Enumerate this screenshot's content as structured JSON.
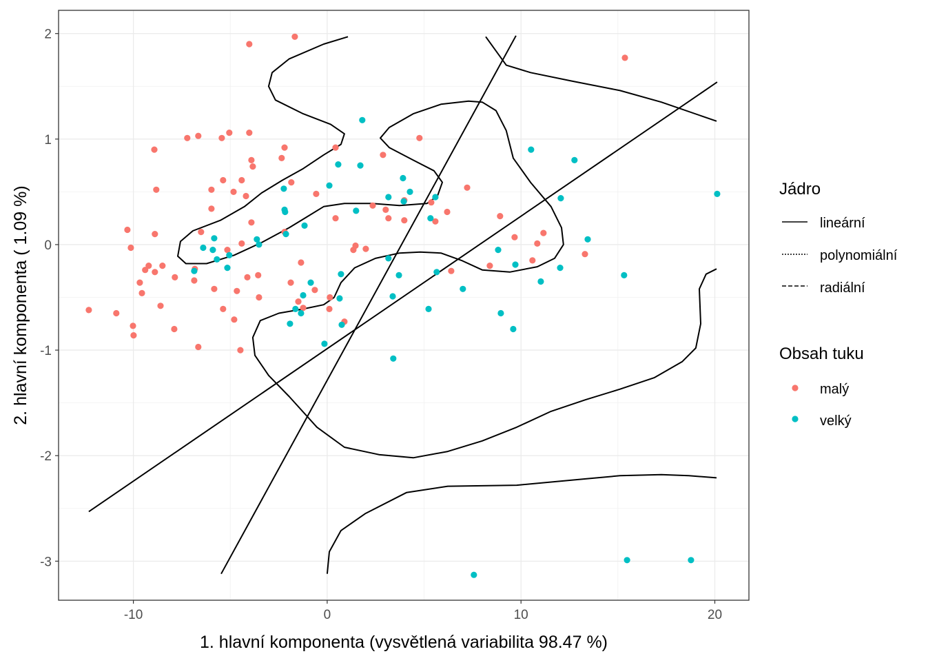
{
  "chart_data": {
    "type": "scatter",
    "xlabel": "1. hlavní komponenta (vysvětlená variabilita 98.47 %)",
    "ylabel": "2. hlavní komponenta ( 1.09 %)",
    "xlim": [
      -13.86,
      21.76
    ],
    "ylim": [
      -3.37,
      2.22
    ],
    "xticks": [
      -10,
      0,
      10,
      20
    ],
    "xtick_labels": [
      "-10",
      "0",
      "10",
      "20"
    ],
    "yticks": [
      -3,
      -2,
      -1,
      0,
      1,
      2
    ],
    "ytick_labels": [
      "-3",
      "-2",
      "-1",
      "0",
      "1",
      "2"
    ],
    "grid": true,
    "legend_placement": "right",
    "legend_lines": {
      "title": "Jádro",
      "entries": [
        {
          "label": "lineární",
          "dash": "solid"
        },
        {
          "label": "polynomiální",
          "dash": "dotted"
        },
        {
          "label": "radiální",
          "dash": "dashed"
        }
      ]
    },
    "legend_points": {
      "title": "Obsah tuku",
      "entries": [
        {
          "label": "malý",
          "color": "#F8766D"
        },
        {
          "label": "velký",
          "color": "#00BFC4"
        }
      ]
    },
    "series": [
      {
        "name": "malý",
        "color": "#F8766D",
        "points": [
          [
            -12.3,
            -0.62
          ],
          [
            -10.88,
            -0.65
          ],
          [
            -10.31,
            0.14
          ],
          [
            -10.13,
            -0.03
          ],
          [
            -10.02,
            -0.77
          ],
          [
            -9.99,
            -0.86
          ],
          [
            -9.67,
            -0.36
          ],
          [
            -9.56,
            -0.46
          ],
          [
            -9.39,
            -0.24
          ],
          [
            -9.21,
            -0.2
          ],
          [
            -8.89,
            -0.26
          ],
          [
            -8.89,
            0.1
          ],
          [
            -8.92,
            0.9
          ],
          [
            -8.82,
            0.52
          ],
          [
            -8.6,
            -0.58
          ],
          [
            -8.5,
            -0.2
          ],
          [
            -7.89,
            -0.8
          ],
          [
            -7.86,
            -0.31
          ],
          [
            -7.22,
            1.01
          ],
          [
            -6.86,
            -0.34
          ],
          [
            -6.83,
            -0.23
          ],
          [
            -6.65,
            1.03
          ],
          [
            -6.65,
            -0.97
          ],
          [
            -6.51,
            0.12
          ],
          [
            -5.97,
            0.52
          ],
          [
            -5.97,
            0.34
          ],
          [
            -5.83,
            -0.42
          ],
          [
            -5.44,
            1.01
          ],
          [
            -5.37,
            0.61
          ],
          [
            -5.37,
            -0.61
          ],
          [
            -5.15,
            -0.05
          ],
          [
            -5.05,
            1.06
          ],
          [
            -4.83,
            0.5
          ],
          [
            -4.8,
            -0.71
          ],
          [
            -4.66,
            -0.44
          ],
          [
            -4.48,
            -1.0
          ],
          [
            -4.41,
            0.61
          ],
          [
            -4.41,
            0.01
          ],
          [
            -4.19,
            0.46
          ],
          [
            -4.12,
            -0.31
          ],
          [
            -4.02,
            1.9
          ],
          [
            -4.02,
            1.06
          ],
          [
            -3.91,
            0.8
          ],
          [
            -3.84,
            0.74
          ],
          [
            -3.91,
            0.21
          ],
          [
            -3.56,
            -0.29
          ],
          [
            -3.52,
            -0.5
          ],
          [
            -2.35,
            0.82
          ],
          [
            -2.2,
            0.92
          ],
          [
            -2.2,
            0.12
          ],
          [
            -1.85,
            0.59
          ],
          [
            -1.88,
            -0.36
          ],
          [
            -1.67,
            1.97
          ],
          [
            -1.49,
            -0.54
          ],
          [
            -1.35,
            -0.17
          ],
          [
            -1.24,
            -0.6
          ],
          [
            -0.64,
            -0.43
          ],
          [
            -0.57,
            0.48
          ],
          [
            0.11,
            -0.61
          ],
          [
            0.14,
            -0.5
          ],
          [
            0.43,
            0.92
          ],
          [
            0.43,
            0.25
          ],
          [
            0.89,
            -0.73
          ],
          [
            1.35,
            -0.05
          ],
          [
            1.46,
            -0.01
          ],
          [
            1.99,
            -0.04
          ],
          [
            2.35,
            0.37
          ],
          [
            2.88,
            0.85
          ],
          [
            3.02,
            0.33
          ],
          [
            3.16,
            0.25
          ],
          [
            3.98,
            0.42
          ],
          [
            3.98,
            0.23
          ],
          [
            4.76,
            1.01
          ],
          [
            5.37,
            0.4
          ],
          [
            5.58,
            0.22
          ],
          [
            6.19,
            0.31
          ],
          [
            6.4,
            -0.25
          ],
          [
            7.22,
            0.54
          ],
          [
            8.39,
            -0.2
          ],
          [
            8.92,
            0.27
          ],
          [
            9.67,
            0.07
          ],
          [
            10.59,
            -0.15
          ],
          [
            10.84,
            0.01
          ],
          [
            11.16,
            0.11
          ],
          [
            13.3,
            -0.09
          ],
          [
            15.36,
            1.77
          ]
        ]
      },
      {
        "name": "velký",
        "color": "#00BFC4",
        "points": [
          [
            -6.86,
            -0.25
          ],
          [
            -6.4,
            -0.03
          ],
          [
            -5.9,
            -0.05
          ],
          [
            -5.83,
            0.06
          ],
          [
            -5.69,
            -0.14
          ],
          [
            -5.15,
            -0.22
          ],
          [
            -5.05,
            -0.1
          ],
          [
            -3.63,
            0.05
          ],
          [
            -3.52,
            0.0
          ],
          [
            -2.24,
            0.53
          ],
          [
            -2.2,
            0.33
          ],
          [
            -2.17,
            0.31
          ],
          [
            -2.13,
            0.1
          ],
          [
            -1.92,
            -0.75
          ],
          [
            -1.64,
            -0.61
          ],
          [
            -1.35,
            -0.65
          ],
          [
            -1.24,
            -0.48
          ],
          [
            -1.17,
            0.18
          ],
          [
            -0.85,
            -0.36
          ],
          [
            -0.14,
            -0.94
          ],
          [
            0.11,
            0.56
          ],
          [
            0.57,
            0.76
          ],
          [
            0.64,
            -0.51
          ],
          [
            0.71,
            -0.28
          ],
          [
            0.75,
            -0.76
          ],
          [
            1.49,
            0.32
          ],
          [
            1.71,
            0.75
          ],
          [
            1.81,
            1.18
          ],
          [
            3.16,
            0.45
          ],
          [
            3.16,
            -0.13
          ],
          [
            3.38,
            -0.49
          ],
          [
            3.41,
            -1.08
          ],
          [
            3.7,
            -0.29
          ],
          [
            3.91,
            0.63
          ],
          [
            3.95,
            0.41
          ],
          [
            4.27,
            0.5
          ],
          [
            5.23,
            -0.61
          ],
          [
            5.33,
            0.25
          ],
          [
            5.58,
            0.45
          ],
          [
            5.65,
            -0.26
          ],
          [
            7.0,
            -0.42
          ],
          [
            7.57,
            -3.13
          ],
          [
            8.82,
            -0.05
          ],
          [
            8.96,
            -0.65
          ],
          [
            9.6,
            -0.8
          ],
          [
            9.71,
            -0.19
          ],
          [
            10.52,
            0.9
          ],
          [
            11.02,
            -0.35
          ],
          [
            12.02,
            -0.22
          ],
          [
            12.05,
            0.44
          ],
          [
            12.76,
            0.8
          ],
          [
            13.44,
            0.05
          ],
          [
            15.32,
            -0.29
          ],
          [
            15.47,
            -2.99
          ],
          [
            18.77,
            -2.99
          ],
          [
            20.12,
            0.48
          ]
        ]
      }
    ],
    "boundaries": [
      {
        "kernel": "lineární",
        "dash": "solid",
        "points": [
          [
            -5.47,
            -3.12
          ],
          [
            9.74,
            1.98
          ]
        ]
      },
      {
        "kernel": "polynomiální",
        "dash": "dotted",
        "points": [
          [
            -12.3,
            -2.53
          ],
          [
            20.12,
            1.54
          ]
        ]
      },
      {
        "kernel": "radiální",
        "dash": "dashed",
        "points": [
          [
            1.07,
            1.97
          ],
          [
            -0.18,
            1.9
          ],
          [
            -1.96,
            1.76
          ],
          [
            -2.84,
            1.63
          ],
          [
            -3.02,
            1.5
          ],
          [
            -2.67,
            1.37
          ],
          [
            -1.24,
            1.24
          ],
          [
            0.18,
            1.14
          ],
          [
            0.89,
            1.05
          ],
          [
            0.71,
            0.95
          ],
          [
            -0.18,
            0.85
          ],
          [
            -1.24,
            0.72
          ],
          [
            -2.31,
            0.61
          ],
          [
            -3.38,
            0.49
          ],
          [
            -4.27,
            0.36
          ],
          [
            -5.51,
            0.23
          ],
          [
            -6.93,
            0.13
          ],
          [
            -7.57,
            0.03
          ],
          [
            -7.71,
            -0.11
          ],
          [
            -7.29,
            -0.18
          ],
          [
            -6.22,
            -0.18
          ],
          [
            -4.8,
            -0.1
          ],
          [
            -3.38,
            0.02
          ],
          [
            -1.96,
            0.16
          ],
          [
            -1.07,
            0.26
          ],
          [
            -0.18,
            0.36
          ],
          [
            0.89,
            0.39
          ],
          [
            2.31,
            0.39
          ],
          [
            3.73,
            0.37
          ],
          [
            5.15,
            0.39
          ],
          [
            5.69,
            0.46
          ],
          [
            5.94,
            0.59
          ],
          [
            5.51,
            0.7
          ],
          [
            4.44,
            0.8
          ],
          [
            3.2,
            0.92
          ],
          [
            2.74,
            1.01
          ],
          [
            3.2,
            1.11
          ],
          [
            4.44,
            1.24
          ],
          [
            5.87,
            1.33
          ],
          [
            7.29,
            1.36
          ],
          [
            8.0,
            1.35
          ],
          [
            8.71,
            1.27
          ],
          [
            9.24,
            1.08
          ],
          [
            9.6,
            0.82
          ],
          [
            10.49,
            0.59
          ],
          [
            11.55,
            0.36
          ],
          [
            12.09,
            0.16
          ],
          [
            12.19,
            0.0
          ],
          [
            11.73,
            -0.13
          ],
          [
            10.84,
            -0.21
          ],
          [
            9.42,
            -0.26
          ],
          [
            8.0,
            -0.24
          ],
          [
            6.93,
            -0.15
          ],
          [
            5.87,
            -0.08
          ],
          [
            4.8,
            -0.07
          ],
          [
            3.73,
            -0.08
          ],
          [
            2.49,
            -0.13
          ],
          [
            1.42,
            -0.22
          ],
          [
            0.71,
            -0.36
          ],
          [
            0.36,
            -0.5
          ],
          [
            -0.18,
            -0.57
          ],
          [
            -1.24,
            -0.61
          ],
          [
            -2.49,
            -0.65
          ],
          [
            -3.45,
            -0.72
          ],
          [
            -3.84,
            -0.88
          ],
          [
            -3.73,
            -1.05
          ],
          [
            -3.02,
            -1.24
          ],
          [
            -1.96,
            -1.44
          ],
          [
            -0.53,
            -1.73
          ],
          [
            0.89,
            -1.92
          ],
          [
            2.67,
            -1.99
          ],
          [
            4.44,
            -2.02
          ],
          [
            6.22,
            -1.96
          ],
          [
            8.0,
            -1.86
          ],
          [
            9.78,
            -1.73
          ],
          [
            11.55,
            -1.58
          ],
          [
            13.33,
            -1.47
          ],
          [
            15.11,
            -1.37
          ],
          [
            16.89,
            -1.26
          ],
          [
            18.31,
            -1.11
          ],
          [
            19.02,
            -0.98
          ],
          [
            19.27,
            -0.75
          ],
          [
            19.2,
            -0.42
          ],
          [
            19.55,
            -0.28
          ],
          [
            20.09,
            -0.23
          ]
        ]
      },
      {
        "kernel": "radiální",
        "dash": "dashed",
        "points": [
          [
            8.18,
            1.97
          ],
          [
            9.24,
            1.7
          ],
          [
            10.49,
            1.63
          ],
          [
            12.62,
            1.55
          ],
          [
            15.11,
            1.46
          ],
          [
            17.24,
            1.35
          ],
          [
            20.09,
            1.17
          ]
        ]
      },
      {
        "kernel": "radiální",
        "dash": "dashed",
        "points": [
          [
            0.0,
            -3.12
          ],
          [
            0.11,
            -2.91
          ],
          [
            0.71,
            -2.71
          ],
          [
            1.96,
            -2.55
          ],
          [
            4.09,
            -2.35
          ],
          [
            6.22,
            -2.29
          ],
          [
            9.78,
            -2.28
          ],
          [
            11.55,
            -2.25
          ],
          [
            13.33,
            -2.22
          ],
          [
            15.11,
            -2.19
          ],
          [
            17.24,
            -2.18
          ],
          [
            18.66,
            -2.19
          ],
          [
            20.09,
            -2.21
          ]
        ]
      }
    ]
  }
}
